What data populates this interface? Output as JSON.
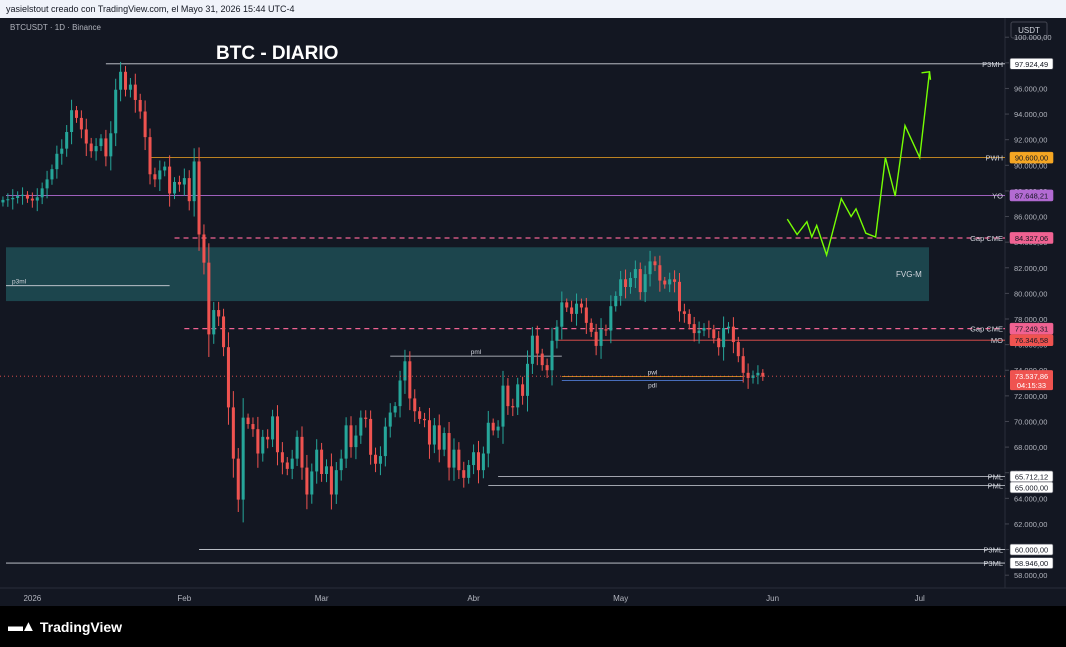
{
  "header": {
    "credit": "yasielstout creado con TradingView.com, el Mayo 31, 2026 15:44 UTC-4"
  },
  "symbol_line": "BTCUSDT · 1D · Binance",
  "chart_title": "BTC - DIARIO",
  "currency_button": "USDT",
  "footer": {
    "brand": "TradingView"
  },
  "colors": {
    "background": "#131722",
    "bull": "#26a69a",
    "bear": "#ef5350",
    "fvg": "#1f4d55",
    "pwh": "#f5a623",
    "yo": "#b36bd3",
    "gap": "#f06292",
    "projection": "#76ff03"
  },
  "chart_data": {
    "type": "candlestick",
    "symbol": "BTCUSDT",
    "timeframe": "1D",
    "exchange": "Binance",
    "ylim": [
      57000,
      101500
    ],
    "y_ticks": [
      "58.000,00",
      "60.000,00",
      "62.000,00",
      "64.000,00",
      "66.000,00",
      "68.000,00",
      "70.000,00",
      "72.000,00",
      "74.000,00",
      "76.000,00",
      "78.000,00",
      "80.000,00",
      "82.000,00",
      "84.000,00",
      "86.000,00",
      "88.000,00",
      "90.000,00",
      "92.000,00",
      "94.000,00",
      "96.000,00",
      "98.000,00",
      "100.000,00"
    ],
    "x_ticks": [
      {
        "label": "2026",
        "day": 0
      },
      {
        "label": "Feb",
        "day": 31
      },
      {
        "label": "Mar",
        "day": 59
      },
      {
        "label": "Abr",
        "day": 90
      },
      {
        "label": "May",
        "day": 120
      },
      {
        "label": "Jun",
        "day": 151
      },
      {
        "label": "Jul",
        "day": 181
      }
    ],
    "x_domain": [
      -6.6,
      198.4
    ],
    "candles_first_day": -6,
    "closes": [
      87300,
      87350,
      87450,
      87600,
      87700,
      87400,
      87250,
      87500,
      88200,
      88900,
      89700,
      90900,
      91300,
      92600,
      94300,
      93700,
      92800,
      91700,
      91100,
      91500,
      92100,
      90700,
      92500,
      95900,
      97300,
      95900,
      96300,
      95100,
      94200,
      92200,
      89300,
      88900,
      89600,
      89900,
      87800,
      88700,
      88500,
      89000,
      87200,
      90300,
      84600,
      82400,
      76800,
      78700,
      78200,
      75800,
      71100,
      67100,
      63900,
      70300,
      69800,
      69400,
      67500,
      68800,
      68600,
      70400,
      67600,
      66800,
      66300,
      67100,
      68800,
      66400,
      64300,
      66100,
      67800,
      65900,
      66500,
      64300,
      66200,
      67100,
      69700,
      68000,
      68900,
      70300,
      70200,
      67400,
      66700,
      67300,
      69600,
      70700,
      71200,
      73200,
      74700,
      71800,
      70800,
      70200,
      70100,
      68200,
      69700,
      67800,
      69100,
      66400,
      67800,
      66200,
      65600,
      66600,
      67600,
      66200,
      67500,
      69900,
      69300,
      69600,
      72800,
      71200,
      71100,
      72900,
      72000,
      74500,
      76700,
      75300,
      74400,
      74000,
      76300,
      77400,
      79300,
      78900,
      78400,
      79200,
      78900,
      77700,
      77000,
      75900,
      77200,
      77100,
      79000,
      79800,
      81100,
      80500,
      81200,
      81900,
      80100,
      81500,
      82500,
      82200,
      81000,
      80700,
      81100,
      80900,
      78600,
      78400,
      77600,
      76900,
      77100,
      77300,
      77200,
      76500,
      75800,
      77300,
      77400,
      76200,
      75100,
      73800,
      73400,
      73600,
      73800,
      73500
    ],
    "levels": [
      {
        "label": "P3MH",
        "value": 97924.49,
        "price": "97.924,49",
        "color": "#d1d4dc",
        "style": "solid"
      },
      {
        "label": "PWH",
        "value": 90600,
        "price": "90.600,00",
        "color": "#f5a623",
        "style": "solid"
      },
      {
        "label": "YO",
        "value": 87648.21,
        "price": "87.648,21",
        "color": "#b36bd3",
        "style": "solid"
      },
      {
        "label": "Gap CME",
        "value": 84327.06,
        "price": "84.327,06",
        "color": "#f06292",
        "style": "dashed"
      },
      {
        "label": "Gap CME",
        "value": 77249.31,
        "price": "77.249,31",
        "color": "#f06292",
        "style": "dashed"
      },
      {
        "label": "MO",
        "value": 76346.58,
        "price": "76.346,58",
        "color": "#ef5350",
        "style": "solid"
      },
      {
        "label": "PML",
        "value": 65712.12,
        "price": "65.712,12",
        "color": "#d1d4dc",
        "style": "solid"
      },
      {
        "label": "PML",
        "value": 65000,
        "price": "65.000,00",
        "color": "#d1d4dc",
        "style": "solid"
      },
      {
        "label": "P3ML",
        "value": 60000,
        "price": "60.000,00",
        "color": "#d1d4dc",
        "style": "solid"
      },
      {
        "label": "P3ML",
        "value": 58946,
        "price": "58.946,00",
        "color": "#d1d4dc",
        "style": "solid"
      }
    ],
    "current_price": {
      "value": 73537.86,
      "price": "73.537,86",
      "countdown": "04:15:33"
    },
    "fvg_zone": {
      "label": "FVG-M",
      "low": 79400,
      "high": 83600
    },
    "inner_labels": [
      {
        "text": "p3ml",
        "value": 80600,
        "from_day": -6,
        "to_day": 28,
        "color": "#d1d4dc"
      },
      {
        "text": "pml",
        "value": 75100,
        "from_day": 73,
        "to_day": 108,
        "color": "#d1d4dc"
      },
      {
        "text": "pwl",
        "value": 73500,
        "from_day": 108,
        "to_day": 145,
        "color": "#f5a623"
      },
      {
        "text": "pdl",
        "value": 73200,
        "from_day": 108,
        "to_day": 145,
        "color": "#5b8def"
      }
    ],
    "projection": [
      {
        "day": 154,
        "value": 85800
      },
      {
        "day": 156,
        "value": 84600
      },
      {
        "day": 158,
        "value": 85600
      },
      {
        "day": 159,
        "value": 84400
      },
      {
        "day": 160,
        "value": 85300
      },
      {
        "day": 162,
        "value": 83000
      },
      {
        "day": 165,
        "value": 87400
      },
      {
        "day": 167,
        "value": 86000
      },
      {
        "day": 168,
        "value": 86600
      },
      {
        "day": 170,
        "value": 84700
      },
      {
        "day": 172,
        "value": 84400
      },
      {
        "day": 174,
        "value": 90600
      },
      {
        "day": 176,
        "value": 87600
      },
      {
        "day": 178,
        "value": 93100
      },
      {
        "day": 181,
        "value": 90600
      },
      {
        "day": 183,
        "value": 97300
      },
      {
        "day": 184,
        "value": 96400
      }
    ]
  }
}
